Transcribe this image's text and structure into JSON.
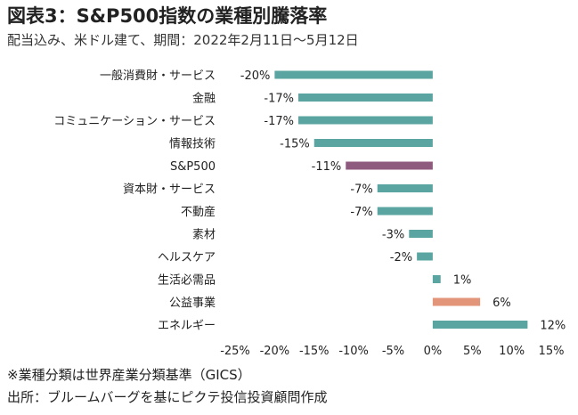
{
  "header": {
    "title": "図表3：S&P500指数の業種別騰落率",
    "subtitle": "配当込み、米ドル建て、期間：2022年2月11日～5月12日"
  },
  "footer": {
    "note": "※業種分類は世界産業分類基準（GICS）",
    "source": "出所：ブルームバーグを基にピクテ投信投資顧問作成"
  },
  "chart_data": {
    "type": "bar",
    "orientation": "horizontal",
    "categories": [
      "一般消費財・サービス",
      "金融",
      "コミュニケーション・サービス",
      "情報技術",
      "S&P500",
      "資本財・サービス",
      "不動産",
      "素材",
      "ヘルスケア",
      "生活必需品",
      "公益事業",
      "エネルギー"
    ],
    "values": [
      -20,
      -17,
      -17,
      -15,
      -11,
      -7,
      -7,
      -3,
      -2,
      1,
      6,
      12
    ],
    "value_labels": [
      "-20%",
      "-17%",
      "-17%",
      "-15%",
      "-11%",
      "-7%",
      "-7%",
      "-3%",
      "-2%",
      "1%",
      "6%",
      "12%"
    ],
    "bar_colors": [
      "#5aa5a2",
      "#5aa5a2",
      "#5aa5a2",
      "#5aa5a2",
      "#8e5a7e",
      "#5aa5a2",
      "#5aa5a2",
      "#5aa5a2",
      "#5aa5a2",
      "#5aa5a2",
      "#e3957a",
      "#5aa5a2"
    ],
    "xlim": [
      -25,
      15
    ],
    "xticks": [
      -25,
      -20,
      -15,
      -10,
      -5,
      0,
      5,
      10,
      15
    ],
    "xtick_labels": [
      "-25%",
      "-20%",
      "-15%",
      "-10%",
      "-5%",
      "0%",
      "5%",
      "10%",
      "15%"
    ],
    "grid": false,
    "legend": "none"
  }
}
